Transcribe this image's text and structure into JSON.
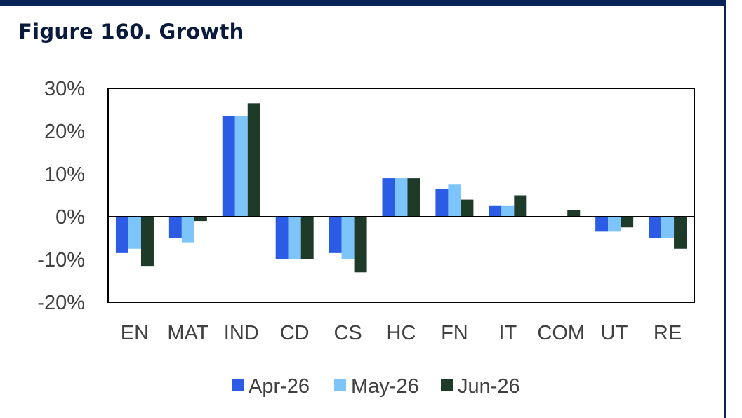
{
  "figure": {
    "title": "Figure 160. Growth"
  },
  "chart_data": {
    "type": "bar",
    "title": "Figure 160. Growth",
    "xlabel": "",
    "ylabel": "",
    "categories": [
      "EN",
      "MAT",
      "IND",
      "CD",
      "CS",
      "HC",
      "FN",
      "IT",
      "COM",
      "UT",
      "RE"
    ],
    "y_ticks": [
      "-20%",
      "-10%",
      "0%",
      "10%",
      "20%",
      "30%"
    ],
    "ylim": [
      -20,
      30
    ],
    "value_unit": "%",
    "grid": false,
    "legend_position": "bottom",
    "series": [
      {
        "name": "Apr-26",
        "color": "#2c5be6",
        "values": [
          -8.5,
          -5,
          23.5,
          -10,
          -8.5,
          9,
          6.5,
          2.5,
          0,
          -3.5,
          -5
        ]
      },
      {
        "name": "May-26",
        "color": "#7cc4fa",
        "values": [
          -7.5,
          -6,
          23.5,
          -10,
          -10,
          9,
          7.5,
          2.5,
          0,
          -3.5,
          -5
        ]
      },
      {
        "name": "Jun-26",
        "color": "#1e3a28",
        "values": [
          -11.5,
          -1,
          26.5,
          -10,
          -13,
          9,
          4,
          5,
          1.5,
          -2.5,
          -7.5
        ]
      }
    ]
  }
}
